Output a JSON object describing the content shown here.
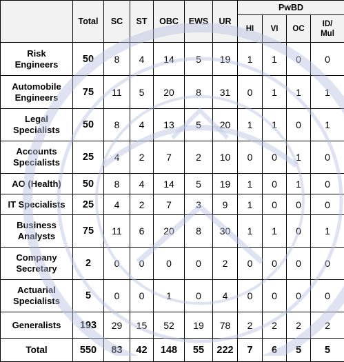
{
  "headers": {
    "post": "",
    "total": "Total",
    "sc": "SC",
    "st": "ST",
    "obc": "OBC",
    "ews": "EWS",
    "ur": "UR",
    "pwbd": "PwBD",
    "hi": "HI",
    "vi": "VI",
    "oc": "OC",
    "idmul_line1": "ID/",
    "idmul_line2": "Mul"
  },
  "rows": [
    {
      "post_l1": "Risk",
      "post_l2": "Engineers",
      "total": "50",
      "sc": "8",
      "st": "4",
      "obc": "14",
      "ews": "5",
      "ur": "19",
      "hi": "1",
      "vi": "1",
      "oc": "0",
      "idmul": "0"
    },
    {
      "post_l1": "Automobile",
      "post_l2": "Engineers",
      "total": "75",
      "sc": "11",
      "st": "5",
      "obc": "20",
      "ews": "8",
      "ur": "31",
      "hi": "0",
      "vi": "1",
      "oc": "1",
      "idmul": "1"
    },
    {
      "post_l1": "Legal",
      "post_l2": "Specialists",
      "total": "50",
      "sc": "8",
      "st": "4",
      "obc": "13",
      "ews": "5",
      "ur": "20",
      "hi": "1",
      "vi": "1",
      "oc": "0",
      "idmul": "1"
    },
    {
      "post_l1": "Accounts",
      "post_l2": "Specialists",
      "total": "25",
      "sc": "4",
      "st": "2",
      "obc": "7",
      "ews": "2",
      "ur": "10",
      "hi": "0",
      "vi": "0",
      "oc": "1",
      "idmul": "0"
    },
    {
      "post_l1": "AO (Health)",
      "post_l2": "",
      "total": "50",
      "sc": "8",
      "st": "4",
      "obc": "14",
      "ews": "5",
      "ur": "19",
      "hi": "1",
      "vi": "0",
      "oc": "1",
      "idmul": "0"
    },
    {
      "post_l1": "IT Specialists",
      "post_l2": "",
      "total": "25",
      "sc": "4",
      "st": "2",
      "obc": "7",
      "ews": "3",
      "ur": "9",
      "hi": "1",
      "vi": "0",
      "oc": "0",
      "idmul": "0"
    },
    {
      "post_l1": "Business",
      "post_l2": "Analysts",
      "total": "75",
      "sc": "11",
      "st": "6",
      "obc": "20",
      "ews": "8",
      "ur": "30",
      "hi": "1",
      "vi": "1",
      "oc": "0",
      "idmul": "1"
    },
    {
      "post_l1": "Company",
      "post_l2": "Secretary",
      "total": "2",
      "sc": "0",
      "st": "0",
      "obc": "0",
      "ews": "0",
      "ur": "2",
      "hi": "0",
      "vi": "0",
      "oc": "0",
      "idmul": "0"
    },
    {
      "post_l1": "Actuarial",
      "post_l2": "Specialists",
      "total": "5",
      "sc": "0",
      "st": "0",
      "obc": "1",
      "ews": "0",
      "ur": "4",
      "hi": "0",
      "vi": "0",
      "oc": "0",
      "idmul": "0"
    },
    {
      "post_l1": "Generalists",
      "post_l2": "",
      "total": "193",
      "sc": "29",
      "st": "15",
      "obc": "52",
      "ews": "19",
      "ur": "78",
      "hi": "2",
      "vi": "2",
      "oc": "2",
      "idmul": "2"
    }
  ],
  "total_row": {
    "label": "Total",
    "total": "550",
    "sc": "83",
    "st": "42",
    "obc": "148",
    "ews": "55",
    "ur": "222",
    "hi": "7",
    "vi": "6",
    "oc": "5",
    "idmul": "5"
  },
  "colors": {
    "header_bg": "#f2f2f2",
    "border": "#000000",
    "watermark": "#c9cfe6"
  },
  "watermark": {
    "icon": "circular-emblem-watermark"
  }
}
